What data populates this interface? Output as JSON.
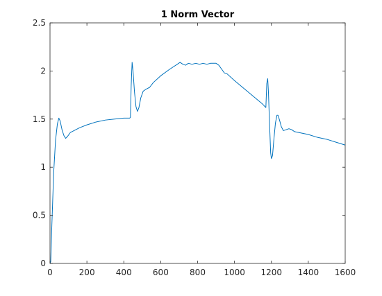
{
  "chart_data": {
    "type": "line",
    "title": "1 Norm Vector",
    "xlabel": "",
    "ylabel": "",
    "xlim": [
      0,
      1600
    ],
    "ylim": [
      0,
      2.5
    ],
    "xticks": [
      0,
      200,
      400,
      600,
      800,
      1000,
      1200,
      1400,
      1600
    ],
    "yticks": [
      0,
      0.5,
      1,
      1.5,
      2,
      2.5
    ],
    "xtick_labels": [
      "0",
      "200",
      "400",
      "600",
      "800",
      "1000",
      "1200",
      "1400",
      "1600"
    ],
    "ytick_labels": [
      "0",
      "0.5",
      "1",
      "1.5",
      "2",
      "2.5"
    ],
    "grid": false,
    "series": [
      {
        "color": "#0072BD",
        "points": [
          [
            0,
            0.0
          ],
          [
            4,
            0.02
          ],
          [
            10,
            0.4
          ],
          [
            20,
            0.95
          ],
          [
            30,
            1.28
          ],
          [
            40,
            1.45
          ],
          [
            48,
            1.51
          ],
          [
            55,
            1.48
          ],
          [
            65,
            1.39
          ],
          [
            75,
            1.33
          ],
          [
            85,
            1.3
          ],
          [
            95,
            1.32
          ],
          [
            110,
            1.36
          ],
          [
            130,
            1.38
          ],
          [
            160,
            1.41
          ],
          [
            200,
            1.44
          ],
          [
            250,
            1.47
          ],
          [
            300,
            1.49
          ],
          [
            350,
            1.5
          ],
          [
            400,
            1.51
          ],
          [
            432,
            1.51
          ],
          [
            436,
            1.52
          ],
          [
            440,
            1.85
          ],
          [
            445,
            2.09
          ],
          [
            450,
            2.0
          ],
          [
            458,
            1.78
          ],
          [
            466,
            1.63
          ],
          [
            474,
            1.58
          ],
          [
            482,
            1.62
          ],
          [
            492,
            1.72
          ],
          [
            505,
            1.79
          ],
          [
            520,
            1.81
          ],
          [
            540,
            1.83
          ],
          [
            560,
            1.88
          ],
          [
            600,
            1.95
          ],
          [
            650,
            2.02
          ],
          [
            690,
            2.07
          ],
          [
            705,
            2.09
          ],
          [
            720,
            2.07
          ],
          [
            735,
            2.06
          ],
          [
            750,
            2.08
          ],
          [
            770,
            2.07
          ],
          [
            790,
            2.08
          ],
          [
            810,
            2.07
          ],
          [
            830,
            2.08
          ],
          [
            850,
            2.07
          ],
          [
            870,
            2.08
          ],
          [
            900,
            2.08
          ],
          [
            915,
            2.06
          ],
          [
            930,
            2.02
          ],
          [
            945,
            1.98
          ],
          [
            960,
            1.97
          ],
          [
            1000,
            1.9
          ],
          [
            1050,
            1.82
          ],
          [
            1100,
            1.74
          ],
          [
            1150,
            1.66
          ],
          [
            1165,
            1.63
          ],
          [
            1170,
            1.62
          ],
          [
            1175,
            1.87
          ],
          [
            1180,
            1.92
          ],
          [
            1184,
            1.78
          ],
          [
            1190,
            1.45
          ],
          [
            1196,
            1.15
          ],
          [
            1200,
            1.09
          ],
          [
            1206,
            1.12
          ],
          [
            1214,
            1.3
          ],
          [
            1222,
            1.46
          ],
          [
            1230,
            1.54
          ],
          [
            1236,
            1.54
          ],
          [
            1244,
            1.49
          ],
          [
            1254,
            1.42
          ],
          [
            1265,
            1.38
          ],
          [
            1280,
            1.39
          ],
          [
            1295,
            1.4
          ],
          [
            1310,
            1.39
          ],
          [
            1325,
            1.37
          ],
          [
            1350,
            1.36
          ],
          [
            1400,
            1.34
          ],
          [
            1450,
            1.31
          ],
          [
            1500,
            1.29
          ],
          [
            1550,
            1.26
          ],
          [
            1600,
            1.23
          ]
        ]
      }
    ]
  }
}
